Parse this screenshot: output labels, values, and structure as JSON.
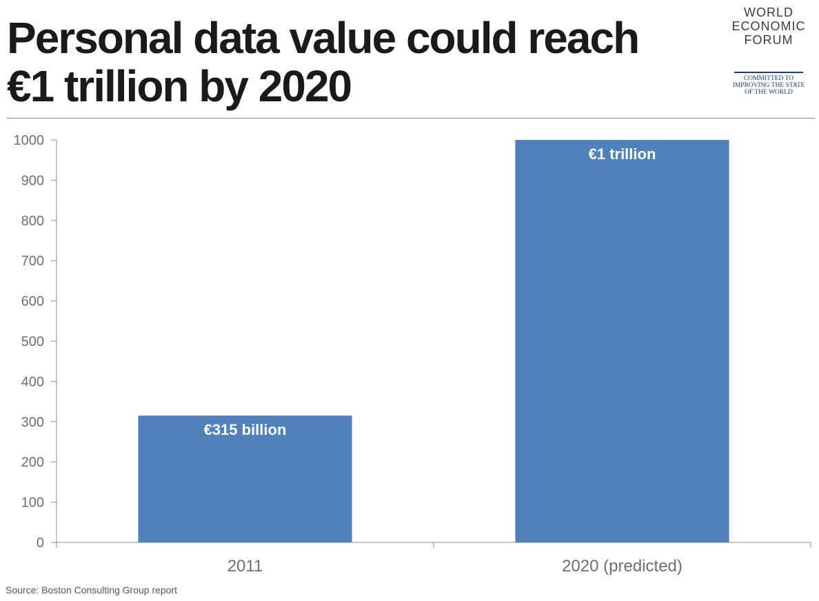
{
  "header": {
    "title_line1": "Personal data value could reach",
    "title_line2": "€1 trillion by 2020"
  },
  "logo": {
    "name_lines": [
      "WORLD",
      "ECONOMIC",
      "FORUM"
    ],
    "tagline_lines": [
      "COMMITTED TO",
      "IMPROVING THE STATE",
      "OF THE WORLD"
    ]
  },
  "chart_data": {
    "type": "bar",
    "categories": [
      "2011",
      "2020 (predicted)"
    ],
    "values": [
      315,
      1000
    ],
    "data_labels": [
      "€315 billion",
      "€1 trillion"
    ],
    "title": "Personal data value could reach €1 trillion by 2020",
    "xlabel": "",
    "ylabel": "",
    "ylim": [
      0,
      1000
    ],
    "yticks": [
      0,
      100,
      200,
      300,
      400,
      500,
      600,
      700,
      800,
      900,
      1000
    ],
    "grid": false,
    "legend": "none",
    "bar_color": "#4f81bd"
  },
  "footer": {
    "source": "Source: Boston Consulting Group report"
  }
}
